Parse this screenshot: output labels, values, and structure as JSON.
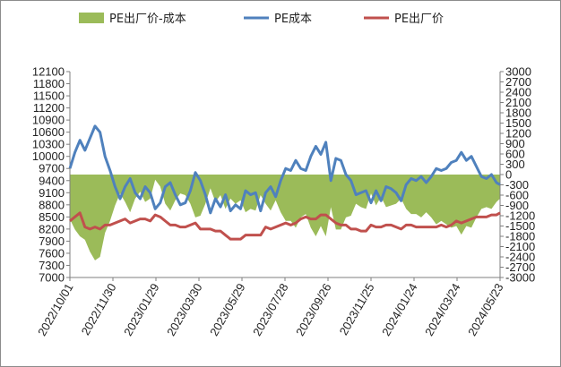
{
  "chart_data": {
    "type": "line",
    "legend": {
      "position": "top",
      "entries": [
        {
          "name": "PE出厂价-成本",
          "color": "#9bbb59",
          "kind": "area"
        },
        {
          "name": "PE成本",
          "color": "#4f81bd",
          "kind": "line"
        },
        {
          "name": "PE出厂价",
          "color": "#c0504d",
          "kind": "line"
        }
      ]
    },
    "x_tick_labels": [
      "2022/10/01",
      "2022/11/30",
      "2023/01/29",
      "2023/03/30",
      "2023/05/29",
      "2023/07/28",
      "2023/09/26",
      "2023/11/25",
      "2024/01/24",
      "2024/03/24",
      "2024/05/23"
    ],
    "y_left": {
      "min": 7000,
      "max": 12100,
      "step": 300,
      "tick_labels": [
        "12100",
        "11800",
        "11500",
        "11200",
        "10900",
        "10600",
        "10300",
        "10000",
        "9700",
        "9400",
        "9100",
        "8800",
        "8500",
        "8200",
        "7900",
        "7600",
        "7300",
        "7000"
      ]
    },
    "y_right": {
      "min": -3000,
      "max": 3000,
      "step": 300,
      "tick_labels": [
        "3000",
        "2700",
        "2400",
        "2100",
        "1800",
        "1500",
        "1200",
        "900",
        "600",
        "300",
        "0",
        "-300",
        "-600",
        "-900",
        "-1200",
        "-1500",
        "-1800",
        "-2100",
        "-2400",
        "-2700",
        "-3000"
      ]
    },
    "grid": false,
    "series": [
      {
        "name": "PE成本",
        "axis": "left",
        "color": "#4f81bd",
        "x": [
          "2022/10/01",
          "2022/10/08",
          "2022/10/15",
          "2022/10/22",
          "2022/10/29",
          "2022/11/05",
          "2022/11/12",
          "2022/11/19",
          "2022/11/26",
          "2022/12/03",
          "2022/12/10",
          "2022/12/17",
          "2022/12/24",
          "2022/12/31",
          "2023/01/07",
          "2023/01/14",
          "2023/01/21",
          "2023/01/28",
          "2023/02/04",
          "2023/02/11",
          "2023/02/18",
          "2023/02/25",
          "2023/03/04",
          "2023/03/11",
          "2023/03/18",
          "2023/03/25",
          "2023/04/01",
          "2023/04/08",
          "2023/04/15",
          "2023/04/22",
          "2023/04/29",
          "2023/05/06",
          "2023/05/13",
          "2023/05/20",
          "2023/05/27",
          "2023/06/03",
          "2023/06/10",
          "2023/06/17",
          "2023/06/24",
          "2023/07/01",
          "2023/07/08",
          "2023/07/15",
          "2023/07/22",
          "2023/07/29",
          "2023/08/05",
          "2023/08/12",
          "2023/08/19",
          "2023/08/26",
          "2023/09/02",
          "2023/09/09",
          "2023/09/16",
          "2023/09/23",
          "2023/09/30",
          "2023/10/07",
          "2023/10/14",
          "2023/10/21",
          "2023/10/28",
          "2023/11/04",
          "2023/11/11",
          "2023/11/18",
          "2023/11/25",
          "2023/12/02",
          "2023/12/09",
          "2023/12/16",
          "2023/12/23",
          "2023/12/30",
          "2024/01/06",
          "2024/01/13",
          "2024/01/20",
          "2024/01/27",
          "2024/02/03",
          "2024/02/10",
          "2024/02/17",
          "2024/02/24",
          "2024/03/02",
          "2024/03/09",
          "2024/03/16",
          "2024/03/23",
          "2024/03/30",
          "2024/04/06",
          "2024/04/13",
          "2024/04/20",
          "2024/04/27",
          "2024/05/04",
          "2024/05/11",
          "2024/05/18",
          "2024/05/25"
        ],
        "values": [
          9700,
          10100,
          10400,
          10150,
          10450,
          10750,
          10600,
          10000,
          9650,
          9250,
          8950,
          9250,
          9450,
          9100,
          8950,
          9250,
          9100,
          8700,
          8850,
          9250,
          9350,
          9050,
          8800,
          8850,
          9150,
          9600,
          9400,
          9050,
          8600,
          8950,
          8750,
          9050,
          8650,
          8800,
          8700,
          9150,
          9050,
          9100,
          8650,
          9100,
          9250,
          9000,
          9400,
          9700,
          9650,
          9900,
          9700,
          9650,
          10000,
          10250,
          10050,
          10350,
          9400,
          9950,
          9900,
          9550,
          9400,
          9050,
          9100,
          9150,
          8850,
          9150,
          8900,
          9250,
          9200,
          9100,
          8900,
          9300,
          9450,
          9400,
          9500,
          9350,
          9500,
          9700,
          9650,
          9700,
          9850,
          9900,
          10100,
          9900,
          10000,
          9750,
          9500,
          9450,
          9550,
          9350,
          9300
        ]
      },
      {
        "name": "PE出厂价",
        "axis": "left",
        "color": "#c0504d",
        "x": [
          "2022/10/01",
          "2022/10/08",
          "2022/10/15",
          "2022/10/22",
          "2022/10/29",
          "2022/11/05",
          "2022/11/12",
          "2022/11/19",
          "2022/11/26",
          "2022/12/03",
          "2022/12/10",
          "2022/12/17",
          "2022/12/24",
          "2022/12/31",
          "2023/01/07",
          "2023/01/14",
          "2023/01/21",
          "2023/01/28",
          "2023/02/04",
          "2023/02/11",
          "2023/02/18",
          "2023/02/25",
          "2023/03/04",
          "2023/03/11",
          "2023/03/18",
          "2023/03/25",
          "2023/04/01",
          "2023/04/08",
          "2023/04/15",
          "2023/04/22",
          "2023/04/29",
          "2023/05/06",
          "2023/05/13",
          "2023/05/20",
          "2023/05/27",
          "2023/06/03",
          "2023/06/10",
          "2023/06/17",
          "2023/06/24",
          "2023/07/01",
          "2023/07/08",
          "2023/07/15",
          "2023/07/22",
          "2023/07/29",
          "2023/08/05",
          "2023/08/12",
          "2023/08/19",
          "2023/08/26",
          "2023/09/02",
          "2023/09/09",
          "2023/09/16",
          "2023/09/23",
          "2023/09/30",
          "2023/10/07",
          "2023/10/14",
          "2023/10/21",
          "2023/10/28",
          "2023/11/04",
          "2023/11/11",
          "2023/11/18",
          "2023/11/25",
          "2023/12/02",
          "2023/12/09",
          "2023/12/16",
          "2023/12/23",
          "2023/12/30",
          "2024/01/06",
          "2024/01/13",
          "2024/01/20",
          "2024/01/27",
          "2024/02/03",
          "2024/02/10",
          "2024/02/17",
          "2024/02/24",
          "2024/03/02",
          "2024/03/09",
          "2024/03/16",
          "2024/03/23",
          "2024/03/30",
          "2024/04/06",
          "2024/04/13",
          "2024/04/20",
          "2024/04/27",
          "2024/05/04",
          "2024/05/11",
          "2024/05/18",
          "2024/05/25"
        ],
        "values": [
          8400,
          8500,
          8600,
          8250,
          8200,
          8250,
          8200,
          8300,
          8300,
          8350,
          8400,
          8450,
          8350,
          8400,
          8450,
          8450,
          8400,
          8550,
          8500,
          8400,
          8300,
          8300,
          8250,
          8250,
          8300,
          8350,
          8200,
          8200,
          8200,
          8150,
          8150,
          8050,
          7950,
          7950,
          7950,
          8050,
          8050,
          8050,
          8050,
          8250,
          8200,
          8250,
          8300,
          8350,
          8300,
          8350,
          8450,
          8500,
          8450,
          8450,
          8550,
          8550,
          8450,
          8350,
          8300,
          8300,
          8200,
          8200,
          8150,
          8150,
          8300,
          8250,
          8250,
          8300,
          8300,
          8250,
          8200,
          8300,
          8300,
          8250,
          8250,
          8250,
          8250,
          8250,
          8300,
          8250,
          8300,
          8400,
          8350,
          8400,
          8450,
          8500,
          8500,
          8500,
          8550,
          8550,
          8600
        ]
      },
      {
        "name": "PE出厂价-成本",
        "axis": "right",
        "type": "area",
        "color": "#9bbb59",
        "x": [
          "2022/10/01",
          "2022/10/08",
          "2022/10/15",
          "2022/10/22",
          "2022/10/29",
          "2022/11/05",
          "2022/11/12",
          "2022/11/19",
          "2022/11/26",
          "2022/12/03",
          "2022/12/10",
          "2022/12/17",
          "2022/12/24",
          "2022/12/31",
          "2023/01/07",
          "2023/01/14",
          "2023/01/21",
          "2023/01/28",
          "2023/02/04",
          "2023/02/11",
          "2023/02/18",
          "2023/02/25",
          "2023/03/04",
          "2023/03/11",
          "2023/03/18",
          "2023/03/25",
          "2023/04/01",
          "2023/04/08",
          "2023/04/15",
          "2023/04/22",
          "2023/04/29",
          "2023/05/06",
          "2023/05/13",
          "2023/05/20",
          "2023/05/27",
          "2023/06/03",
          "2023/06/10",
          "2023/06/17",
          "2023/06/24",
          "2023/07/01",
          "2023/07/08",
          "2023/07/15",
          "2023/07/22",
          "2023/07/29",
          "2023/08/05",
          "2023/08/12",
          "2023/08/19",
          "2023/08/26",
          "2023/09/02",
          "2023/09/09",
          "2023/09/16",
          "2023/09/23",
          "2023/09/30",
          "2023/10/07",
          "2023/10/14",
          "2023/10/21",
          "2023/10/28",
          "2023/11/04",
          "2023/11/11",
          "2023/11/18",
          "2023/11/25",
          "2023/12/02",
          "2023/12/09",
          "2023/12/16",
          "2023/12/23",
          "2023/12/30",
          "2024/01/06",
          "2024/01/13",
          "2024/01/20",
          "2024/01/27",
          "2024/02/03",
          "2024/02/10",
          "2024/02/17",
          "2024/02/24",
          "2024/03/02",
          "2024/03/09",
          "2024/03/16",
          "2024/03/23",
          "2024/03/30",
          "2024/04/06",
          "2024/04/13",
          "2024/04/20",
          "2024/04/27",
          "2024/05/04",
          "2024/05/11",
          "2024/05/18",
          "2024/05/25"
        ],
        "values": [
          -1300,
          -1600,
          -1800,
          -1900,
          -2250,
          -2500,
          -2400,
          -1700,
          -1350,
          -900,
          -550,
          -800,
          -1100,
          -700,
          -500,
          -800,
          -700,
          -150,
          -350,
          -850,
          -1050,
          -750,
          -550,
          -600,
          -850,
          -1250,
          -1200,
          -850,
          -400,
          -800,
          -600,
          -1000,
          -700,
          -850,
          -750,
          -1100,
          -1000,
          -1050,
          -600,
          -850,
          -1050,
          -750,
          -1100,
          -1350,
          -1350,
          -1550,
          -1250,
          -1150,
          -1550,
          -1800,
          -1500,
          -1800,
          -950,
          -1600,
          -1600,
          -1250,
          -1200,
          -850,
          -950,
          -1000,
          -550,
          -900,
          -650,
          -950,
          -900,
          -850,
          -700,
          -1000,
          -1150,
          -1150,
          -1250,
          -1100,
          -1250,
          -1450,
          -1350,
          -1450,
          -1550,
          -1500,
          -1750,
          -1500,
          -1550,
          -1250,
          -1000,
          -950,
          -1000,
          -800,
          -700
        ]
      }
    ]
  }
}
